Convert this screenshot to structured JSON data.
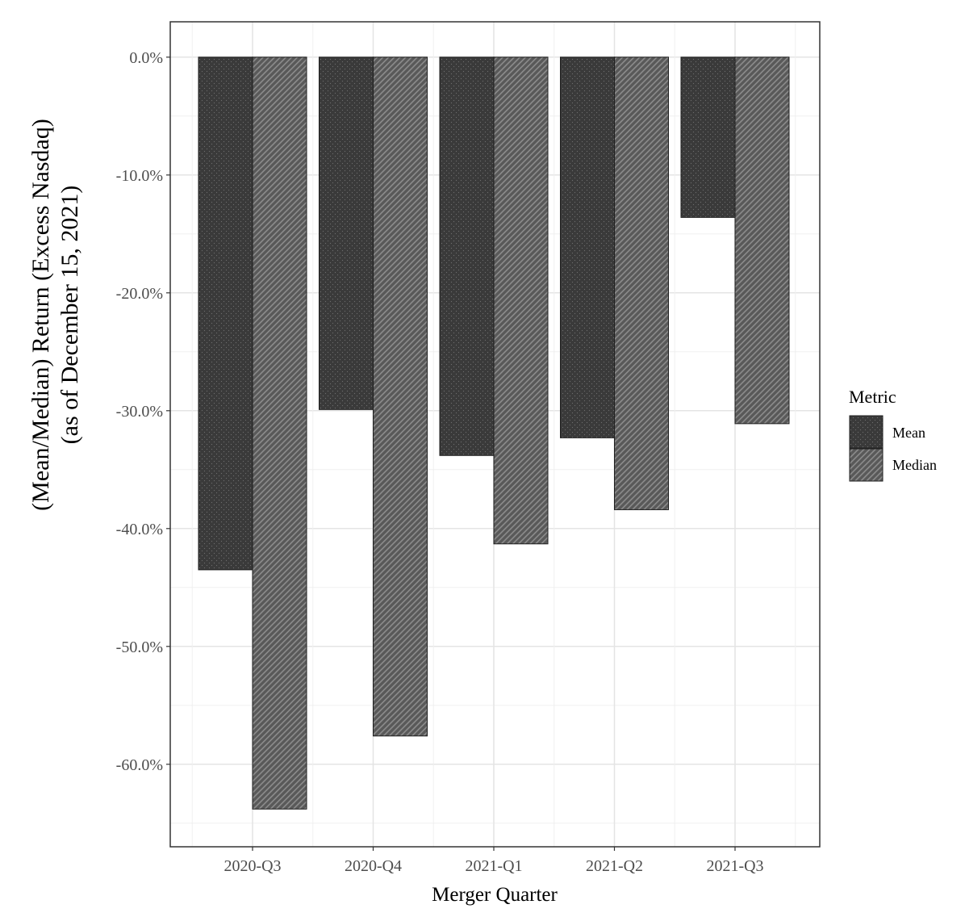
{
  "chart_data": {
    "type": "bar",
    "categories": [
      "2020-Q3",
      "2020-Q4",
      "2021-Q1",
      "2021-Q2",
      "2021-Q3"
    ],
    "series": [
      {
        "name": "Mean",
        "values": [
          -43.5,
          -29.9,
          -33.8,
          -32.3,
          -13.6
        ],
        "color": "#3a3a3a"
      },
      {
        "name": "Median",
        "values": [
          -63.8,
          -57.6,
          -41.3,
          -38.4,
          -31.1
        ],
        "color": "#666666"
      }
    ],
    "ylabel_line1": "(Mean/Median) Return (Excess Nasdaq)",
    "ylabel_line2": "(as of December 15, 2021)",
    "xlabel": "Merger Quarter",
    "ylim": [
      -67.0,
      3.0
    ],
    "yticks": [
      0,
      -10,
      -20,
      -30,
      -40,
      -50,
      -60
    ],
    "ytick_labels": [
      "0.0%",
      "-10.0%",
      "-20.0%",
      "-30.0%",
      "-40.0%",
      "-50.0%",
      "-60.0%"
    ],
    "grid": true,
    "legend": {
      "title": "Metric",
      "position": "right",
      "entries": [
        "Mean",
        "Median"
      ]
    }
  }
}
